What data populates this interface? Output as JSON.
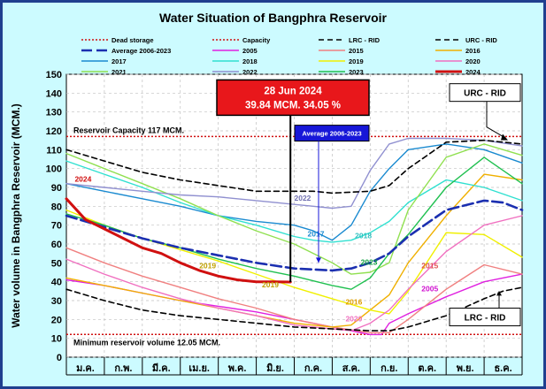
{
  "chart_data": {
    "type": "line",
    "title": "Water Situation of Bangphra Reservoir",
    "ylabel": "Water volume in Bangphra Reservoir (MCM.)",
    "xlabel": "",
    "ylim": [
      0,
      150
    ],
    "yticks": [
      0,
      10,
      20,
      30,
      40,
      50,
      60,
      70,
      80,
      90,
      100,
      110,
      120,
      130,
      140,
      150
    ],
    "months": [
      "ม.ค.",
      "ก.พ.",
      "มี.ค.",
      "เม.ย.",
      "พ.ค.",
      "มิ.ย.",
      "ก.ค.",
      "ส.ค.",
      "ก.ย.",
      "ต.ค.",
      "พ.ย.",
      "ธ.ค."
    ],
    "x_unit": "month (0 = start of ม.ค., 12 = end of ธ.ค.)",
    "capacity": 117,
    "dead_storage": 12.05,
    "capacity_label": "Reservoir Capacity 117 MCM.",
    "dead_label": "Minimum reservoir volume 12.05 MCM.",
    "callout": {
      "date": "28 Jun 2024",
      "value_text": "39.84 MCM. 34.05 %"
    },
    "avg_callout": "Average 2006-2023",
    "urc_box": "URC - RID",
    "lrc_box": "LRC - RID",
    "legend": [
      {
        "name": "Dead storage",
        "color": "#d01010",
        "dash": "2,2",
        "width": 1.5
      },
      {
        "name": "Capacity",
        "color": "#d01010",
        "dash": "2,2",
        "width": 1.5
      },
      {
        "name": "LRC - RID",
        "color": "#000000",
        "dash": "6,4",
        "width": 1.6
      },
      {
        "name": "URC - RID",
        "color": "#000000",
        "dash": "6,4",
        "width": 1.6
      },
      {
        "name": "Average 2006-2023",
        "color": "#1b2fb0",
        "dash": "12,5",
        "width": 2.6
      },
      {
        "name": "2005",
        "color": "#e020e0",
        "dash": "",
        "width": 1.4
      },
      {
        "name": "2015",
        "color": "#f08080",
        "dash": "",
        "width": 1.4
      },
      {
        "name": "2016",
        "color": "#f0b000",
        "dash": "",
        "width": 1.4
      },
      {
        "name": "2017",
        "color": "#1a8ad0",
        "dash": "",
        "width": 1.4
      },
      {
        "name": "2018",
        "color": "#30e0d0",
        "dash": "",
        "width": 1.4
      },
      {
        "name": "2019",
        "color": "#f0f000",
        "dash": "",
        "width": 1.4
      },
      {
        "name": "2020",
        "color": "#f070c0",
        "dash": "",
        "width": 1.4
      },
      {
        "name": "2021",
        "color": "#90e050",
        "dash": "",
        "width": 1.4
      },
      {
        "name": "2022",
        "color": "#9090d0",
        "dash": "",
        "width": 1.4
      },
      {
        "name": "2023",
        "color": "#20c050",
        "dash": "",
        "width": 1.4
      },
      {
        "name": "2024",
        "color": "#d01010",
        "dash": "",
        "width": 3.0
      }
    ],
    "series": [
      {
        "name": "URC - RID",
        "x": [
          0,
          1,
          2,
          3,
          4,
          5,
          6,
          6.5,
          7,
          8,
          8.5,
          9,
          10,
          11,
          12
        ],
        "y": [
          110,
          104,
          98,
          94,
          91,
          88,
          88,
          88,
          87,
          88,
          91,
          100,
          114,
          115,
          113
        ]
      },
      {
        "name": "LRC - RID",
        "x": [
          0,
          1,
          2,
          3,
          4,
          5,
          6,
          7,
          8,
          8.5,
          9,
          10,
          11,
          11.5,
          12
        ],
        "y": [
          36,
          30,
          25,
          22,
          20,
          18,
          16,
          15,
          14,
          14,
          16,
          22,
          31,
          35,
          37
        ]
      },
      {
        "name": "Average 2006-2023",
        "x": [
          0,
          1,
          2,
          3,
          4,
          5,
          6,
          7,
          7.5,
          8,
          8.5,
          9,
          10,
          11,
          11.5,
          12
        ],
        "y": [
          75,
          69,
          63,
          58,
          54,
          50,
          47,
          46,
          47,
          50,
          55,
          64,
          78,
          83,
          82,
          78
        ]
      },
      {
        "name": "2005",
        "x": [
          0,
          1,
          2,
          3,
          4,
          5,
          6,
          7,
          8,
          8.3,
          8.5,
          9,
          10,
          11,
          12
        ],
        "y": [
          41,
          38,
          34,
          30,
          27,
          24,
          20,
          16,
          12,
          12,
          18,
          23,
          32,
          40,
          44
        ]
      },
      {
        "name": "2015",
        "x": [
          0,
          1,
          2,
          3,
          4,
          5,
          6,
          7,
          8,
          8.5,
          9,
          10,
          11,
          12
        ],
        "y": [
          58,
          50,
          43,
          37,
          31,
          26,
          20,
          16,
          13,
          13,
          20,
          36,
          49,
          44
        ]
      },
      {
        "name": "2016",
        "x": [
          0,
          1,
          2,
          3,
          4,
          5,
          6,
          7,
          7.5,
          8,
          8.5,
          9,
          10,
          11,
          12
        ],
        "y": [
          42,
          38,
          34,
          30,
          26,
          22,
          18,
          16,
          17,
          25,
          33,
          50,
          75,
          97,
          94
        ]
      },
      {
        "name": "2017",
        "x": [
          0,
          1,
          2,
          3,
          4,
          5,
          6,
          6.5,
          7,
          7.5,
          8,
          8.5,
          9,
          10,
          11,
          12
        ],
        "y": [
          92,
          88,
          84,
          80,
          75,
          72,
          70,
          67,
          62,
          70,
          88,
          100,
          110,
          113,
          110,
          103
        ]
      },
      {
        "name": "2018",
        "x": [
          0,
          1,
          2,
          3,
          4,
          5,
          6,
          6.5,
          7,
          7.5,
          8,
          8.5,
          9,
          10,
          11,
          12
        ],
        "y": [
          104,
          97,
          90,
          82,
          75,
          70,
          64,
          62,
          61,
          62,
          66,
          72,
          82,
          94,
          90,
          83
        ]
      },
      {
        "name": "2019",
        "x": [
          0,
          1,
          2,
          3,
          4,
          5,
          6,
          7,
          8,
          8.5,
          9,
          10,
          11,
          12
        ],
        "y": [
          78,
          70,
          63,
          57,
          51,
          44,
          37,
          31,
          25,
          23,
          35,
          66,
          65,
          53
        ]
      },
      {
        "name": "2020",
        "x": [
          0,
          1,
          2,
          3,
          4,
          5,
          6,
          7,
          7.5,
          8,
          8.5,
          9,
          10,
          11,
          12
        ],
        "y": [
          52,
          44,
          37,
          31,
          26,
          22,
          17,
          15,
          14,
          18,
          25,
          36,
          56,
          70,
          75
        ]
      },
      {
        "name": "2021",
        "x": [
          0,
          1,
          2,
          3,
          4,
          5,
          6,
          7,
          7.5,
          8,
          8.5,
          9,
          10,
          11,
          12
        ],
        "y": [
          108,
          100,
          92,
          84,
          75,
          67,
          60,
          50,
          44,
          45,
          50,
          78,
          106,
          113,
          107
        ]
      },
      {
        "name": "2022",
        "x": [
          0,
          1,
          2,
          3,
          4,
          5,
          6,
          6.5,
          7,
          7.5,
          8,
          8.5,
          9,
          10,
          11,
          12
        ],
        "y": [
          92,
          90,
          88,
          86,
          85,
          83,
          81,
          80,
          79,
          80,
          99,
          113,
          116,
          116,
          115,
          112
        ]
      },
      {
        "name": "2023",
        "x": [
          0,
          1,
          2,
          3,
          4,
          5,
          6,
          7,
          7.5,
          8,
          8.5,
          9,
          10,
          11,
          12
        ],
        "y": [
          76,
          70,
          63,
          58,
          52,
          47,
          43,
          38,
          36,
          42,
          55,
          65,
          90,
          106,
          92
        ]
      },
      {
        "name": "2024",
        "x": [
          0,
          0.5,
          1,
          1.5,
          2,
          2.5,
          3,
          3.5,
          4,
          4.5,
          5,
          5.5,
          5.9
        ],
        "y": [
          84,
          73,
          68,
          63,
          58,
          55,
          50,
          46,
          43,
          41,
          40,
          40,
          39.84
        ]
      }
    ],
    "year_labels": [
      {
        "name": "2024",
        "x": 0.22,
        "y": 93,
        "color": "#d01010"
      },
      {
        "name": "2017",
        "x": 6.35,
        "y": 64,
        "color": "#1a8ad0"
      },
      {
        "name": "2018",
        "x": 7.6,
        "y": 63,
        "color": "#30c0c0"
      },
      {
        "name": "2023",
        "x": 7.75,
        "y": 49,
        "color": "#10a040"
      },
      {
        "name": "2022",
        "x": 6.0,
        "y": 83,
        "color": "#7070b0"
      },
      {
        "name": "2015",
        "x": 9.35,
        "y": 47,
        "color": "#e05050"
      },
      {
        "name": "2005",
        "x": 9.35,
        "y": 35,
        "color": "#d010d0"
      },
      {
        "name": "2016",
        "x": 7.35,
        "y": 28,
        "color": "#e0a000"
      },
      {
        "name": "2020",
        "x": 7.35,
        "y": 19,
        "color": "#f070c0"
      },
      {
        "name": "2019",
        "x": 5.15,
        "y": 37,
        "color": "#c0a000"
      },
      {
        "name": "2019",
        "x": 3.5,
        "y": 47,
        "color": "#c0a000"
      }
    ]
  }
}
